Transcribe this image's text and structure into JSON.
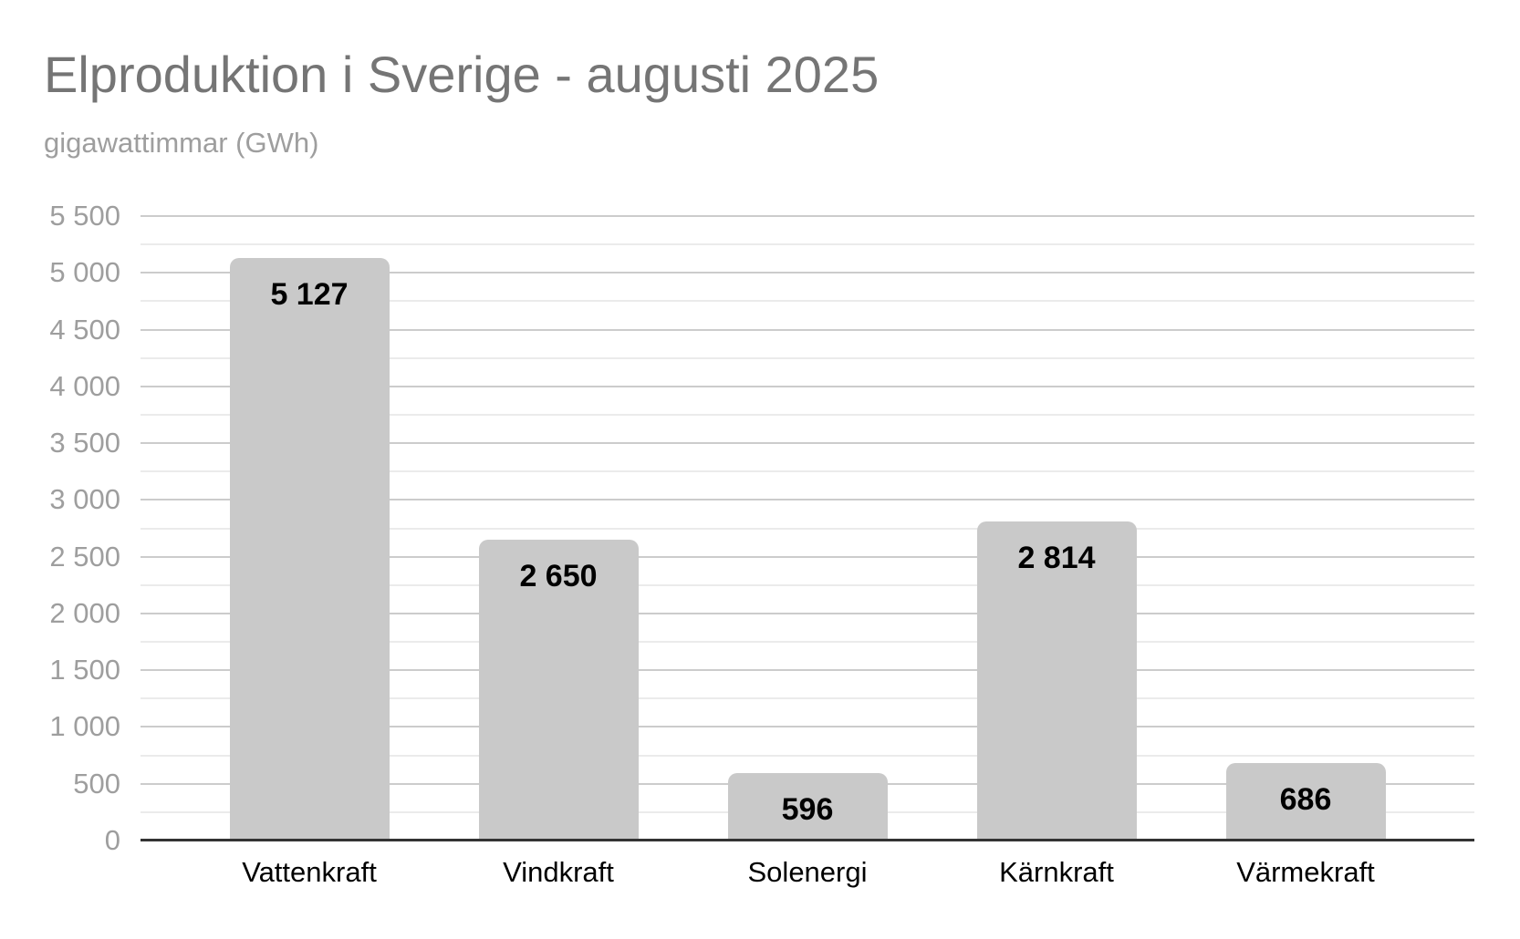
{
  "title": "Elproduktion i Sverige - augusti 2025",
  "subtitle": "gigawattimmar (GWh)",
  "colors": {
    "title_color": "#757575",
    "subtitle_color": "#9e9e9e",
    "axis_label_color": "#9e9e9e",
    "category_label_color": "#000000",
    "value_label_color": "#000000",
    "bar_color": "#c9c9c9",
    "gridline_major_color": "#cccccc",
    "gridline_minor_color": "#ebebeb",
    "baseline_color": "#333333"
  },
  "chart_data": {
    "type": "bar",
    "title": "Elproduktion i Sverige - augusti 2025",
    "subtitle": "gigawattimmar (GWh)",
    "ylabel": "gigawattimmar (GWh)",
    "xlabel": "",
    "categories": [
      "Vattenkraft",
      "Vindkraft",
      "Solenergi",
      "Kärnkraft",
      "Värmekraft"
    ],
    "values": [
      5127,
      2650,
      596,
      2814,
      686
    ],
    "value_labels": [
      "5 127",
      "2 650",
      "596",
      "2 814",
      "686"
    ],
    "ylim": [
      0,
      5500
    ],
    "y_major_step": 500,
    "y_minor_step": 250,
    "y_tick_values": [
      0,
      500,
      1000,
      1500,
      2000,
      2500,
      3000,
      3500,
      4000,
      4500,
      5000,
      5500
    ],
    "y_tick_labels": [
      "0",
      "500",
      "1 000",
      "1 500",
      "2 000",
      "2 500",
      "3 000",
      "3 500",
      "4 000",
      "4 500",
      "5 000",
      "5 500"
    ],
    "grid": true,
    "legend": "none",
    "bar_orientation": "vertical"
  }
}
